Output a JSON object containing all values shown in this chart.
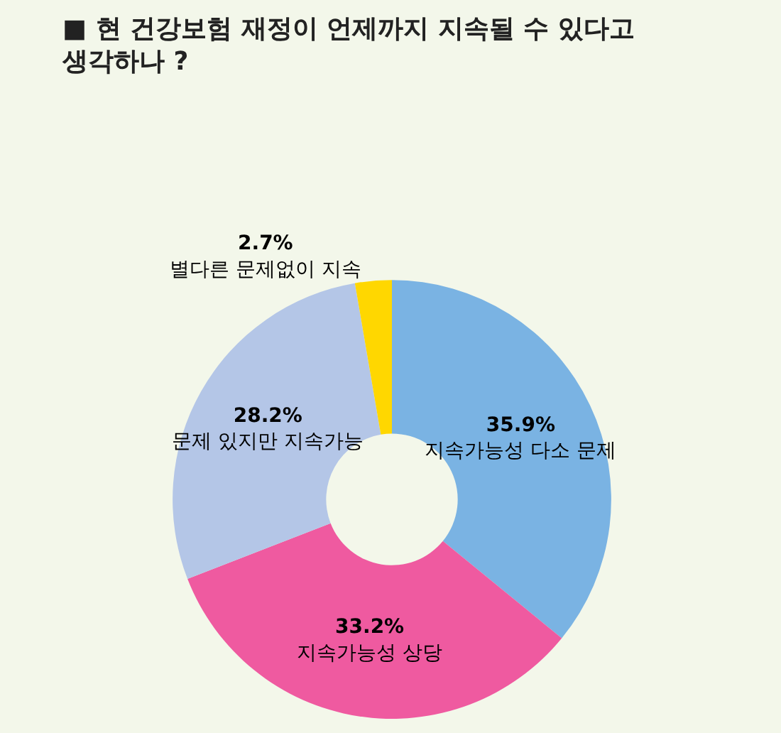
{
  "chart_data": {
    "type": "donut",
    "title": "■ 현 건강보험 재정이 언제까지 지속될 수 있다고\n생각하나 ?",
    "categories": [
      "지속가능성 다소 문제",
      "지속가능성 상당",
      "문제 있지만 지속가능",
      "별다른 문제없이 지속"
    ],
    "values": [
      35.9,
      33.2,
      28.2,
      2.7
    ],
    "value_labels": [
      "35.9%",
      "33.2%",
      "28.2%",
      "2.7%"
    ],
    "colors": [
      "#7ab3e3",
      "#ef5aa0",
      "#b4c6e7",
      "#ffd700"
    ],
    "legend": false
  }
}
